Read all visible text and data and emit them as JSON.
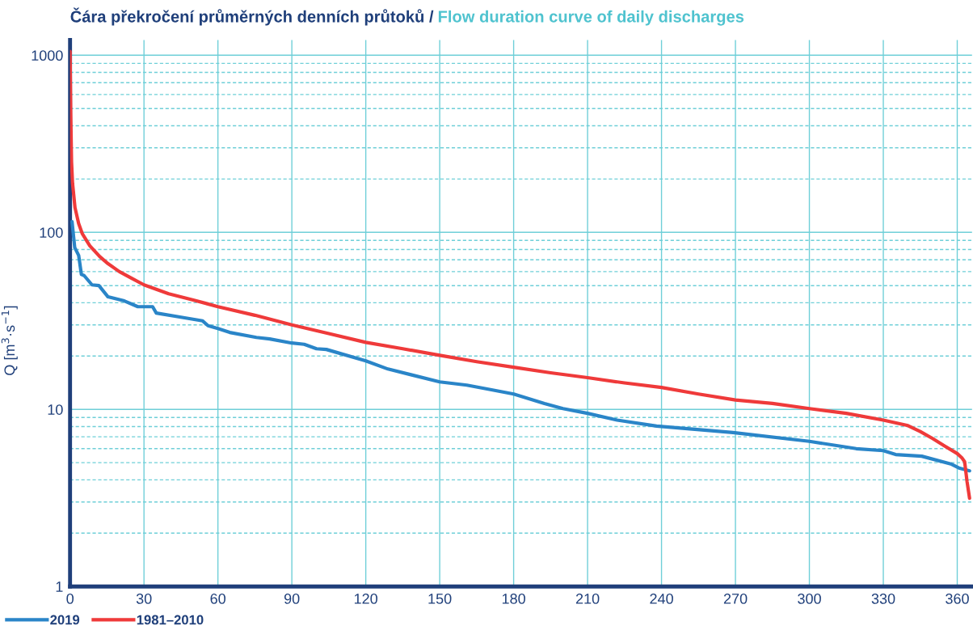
{
  "chart_data": {
    "type": "line",
    "title": "Čára překročení průměrných denních průtoků /",
    "subtitle": "Flow duration curve of daily discharges",
    "ylabel": "Q [m$^{3}$·s$^{−1}$]",
    "log": "y",
    "grid": true,
    "legend": "bottom left",
    "marker": "none",
    "line_style": "solid",
    "xlim": [
      0,
      366
    ],
    "xticks": [
      0,
      30,
      60,
      90,
      120,
      150,
      180,
      210,
      240,
      270,
      300,
      330,
      360
    ],
    "ylim": [
      1,
      1220
    ],
    "yticks": [
      1,
      {
        "value": 2,
        "label": null
      },
      {
        "value": 3,
        "label": null
      },
      {
        "value": 4,
        "label": null
      },
      {
        "value": 5,
        "label": null
      },
      {
        "value": 6,
        "label": null
      },
      {
        "value": 7,
        "label": null
      },
      {
        "value": 8,
        "label": null
      },
      {
        "value": 9,
        "label": null
      },
      10,
      {
        "value": 20,
        "label": null
      },
      {
        "value": 30,
        "label": null
      },
      {
        "value": 40,
        "label": null
      },
      {
        "value": 50,
        "label": null
      },
      {
        "value": 60,
        "label": null
      },
      {
        "value": 70,
        "label": null
      },
      {
        "value": 80,
        "label": null
      },
      {
        "value": 90,
        "label": null
      },
      100,
      {
        "value": 200,
        "label": null
      },
      {
        "value": 300,
        "label": null
      },
      {
        "value": 400,
        "label": null
      },
      {
        "value": 500,
        "label": null
      },
      {
        "value": 600,
        "label": null
      },
      {
        "value": 700,
        "label": null
      },
      {
        "value": 800,
        "label": null
      },
      {
        "value": 900,
        "label": null
      },
      1000
    ],
    "series": [
      {
        "name": "2019",
        "color": "#2a85c8",
        "x": [
          0.8,
          1.9,
          3.5,
          4.6,
          5.7,
          8.9,
          11.7,
          15.4,
          22,
          27.5,
          33.5,
          35,
          46,
          53.8,
          56,
          60,
          64.8,
          75.6,
          81,
          90,
          95,
          100,
          104,
          120,
          129,
          150,
          161,
          171,
          180,
          192.5,
          200,
          210,
          222,
          238,
          269,
          300,
          319,
          330,
          335,
          345.6,
          357.7,
          361,
          365
        ],
        "values": [
          115,
          82,
          74,
          57.8,
          57,
          50.5,
          50,
          43.2,
          41,
          38,
          38,
          35,
          33,
          31.6,
          29.7,
          28.6,
          27.2,
          25.5,
          25,
          23.7,
          23.3,
          22,
          21.8,
          18.8,
          16.9,
          14.3,
          13.7,
          12.9,
          12.2,
          10.8,
          10.1,
          9.5,
          8.7,
          8.05,
          7.4,
          6.6,
          6.0,
          5.85,
          5.56,
          5.44,
          4.9,
          4.65,
          4.5
        ]
      },
      {
        "name": "1981–2010",
        "color": "#ef3a3a",
        "x": [
          0,
          0.3,
          0.6,
          1,
          2,
          3.5,
          5,
          8,
          12,
          15.4,
          20,
          25,
          30,
          40,
          50,
          60,
          75,
          90,
          105,
          120,
          135,
          150,
          165,
          180,
          195,
          210,
          225,
          240,
          255,
          270,
          285,
          300,
          315,
          330,
          340,
          345,
          350,
          355,
          360,
          362,
          363,
          364,
          365
        ],
        "values": [
          1050,
          450,
          250,
          190,
          138,
          112,
          98,
          84,
          73,
          66.5,
          60,
          55,
          50.5,
          45,
          41.5,
          38,
          34,
          30,
          26.8,
          23.9,
          22,
          20.2,
          18.6,
          17.3,
          16.1,
          15.1,
          14.1,
          13.3,
          12.2,
          11.3,
          10.8,
          10.1,
          9.5,
          8.7,
          8.1,
          7.5,
          6.85,
          6.2,
          5.63,
          5.3,
          5.06,
          3.89,
          3.15
        ]
      }
    ]
  }
}
